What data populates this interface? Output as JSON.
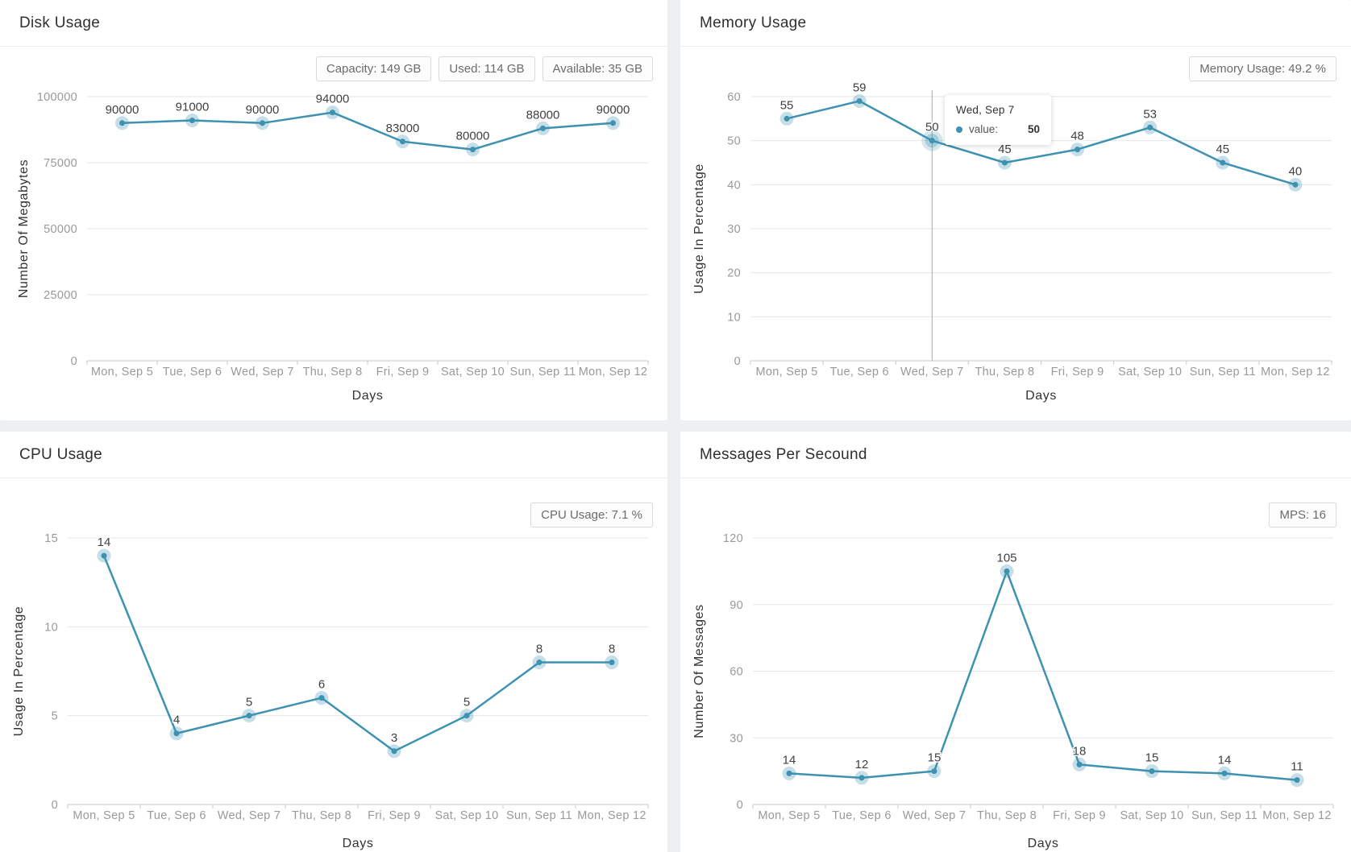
{
  "colors": {
    "line": "#3e92b1",
    "halo": "rgba(62,146,177,0.30)",
    "hover_halo": "rgba(62,146,177,0.22)",
    "badge_border": "#d9d9d9",
    "page_background": "#edeff2"
  },
  "chart_data": [
    {
      "id": "disk",
      "type": "line",
      "title": "Disk Usage",
      "badges": [
        "Capacity: 149 GB",
        "Used: 114 GB",
        "Available: 35 GB"
      ],
      "categories": [
        "Mon, Sep 5",
        "Tue, Sep 6",
        "Wed, Sep 7",
        "Thu, Sep 8",
        "Fri, Sep 9",
        "Sat, Sep 10",
        "Sun, Sep 11",
        "Mon, Sep 12"
      ],
      "values": [
        90000,
        91000,
        90000,
        94000,
        83000,
        80000,
        88000,
        90000
      ],
      "yticks": [
        0,
        25000,
        50000,
        75000,
        100000
      ],
      "ylim": [
        0,
        100000
      ],
      "ylabel": "Number Of Megabytes",
      "xlabel": "Days",
      "grid": true,
      "legend": "none"
    },
    {
      "id": "memory",
      "type": "line",
      "title": "Memory Usage",
      "badges": [
        "Memory Usage: 49.2 %"
      ],
      "categories": [
        "Mon, Sep 5",
        "Tue, Sep 6",
        "Wed, Sep 7",
        "Thu, Sep 8",
        "Fri, Sep 9",
        "Sat, Sep 10",
        "Sun, Sep 11",
        "Mon, Sep 12"
      ],
      "values": [
        55,
        59,
        50,
        45,
        48,
        53,
        45,
        40
      ],
      "yticks": [
        0,
        10,
        20,
        30,
        40,
        50,
        60
      ],
      "ylim": [
        0,
        60
      ],
      "ylabel": "Usage In Percentage",
      "xlabel": "Days",
      "grid": true,
      "legend": "none",
      "tooltip": {
        "header": "Wed, Sep 7",
        "series_label": "value:",
        "value": "50",
        "point_index": 2,
        "crosshair": true
      }
    },
    {
      "id": "cpu",
      "type": "line",
      "title": "CPU Usage",
      "badges": [
        "CPU Usage: 7.1 %"
      ],
      "categories": [
        "Mon, Sep 5",
        "Tue, Sep 6",
        "Wed, Sep 7",
        "Thu, Sep 8",
        "Fri, Sep 9",
        "Sat, Sep 10",
        "Sun, Sep 11",
        "Mon, Sep 12"
      ],
      "values": [
        14,
        4,
        5,
        6,
        3,
        5,
        8,
        8
      ],
      "yticks": [
        0,
        5,
        10,
        15
      ],
      "ylim": [
        0,
        15
      ],
      "ylabel": "Usage In Percentage",
      "xlabel": "Days",
      "grid": true,
      "legend": "none"
    },
    {
      "id": "mps",
      "type": "line",
      "title": "Messages Per Secound",
      "badges": [
        "MPS: 16"
      ],
      "categories": [
        "Mon, Sep 5",
        "Tue, Sep 6",
        "Wed, Sep 7",
        "Thu, Sep 8",
        "Fri, Sep 9",
        "Sat, Sep 10",
        "Sun, Sep 11",
        "Mon, Sep 12"
      ],
      "values": [
        14,
        12,
        15,
        105,
        18,
        15,
        14,
        11
      ],
      "yticks": [
        0,
        30,
        60,
        90,
        120
      ],
      "ylim": [
        0,
        120
      ],
      "ylabel": "Number Of Messages",
      "xlabel": "Days",
      "grid": true,
      "legend": "none"
    }
  ]
}
